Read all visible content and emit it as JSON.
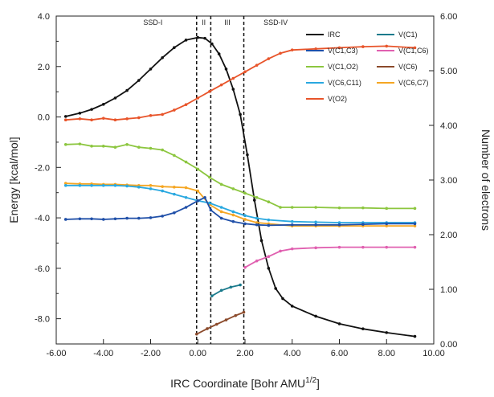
{
  "chart_data": {
    "type": "line",
    "xlabel": "IRC Coordinate [Bohr AMU",
    "xlabel_sup": "1/2",
    "xlabel_end": "]",
    "ylabel_left": "Energy [kcal/mol]",
    "ylabel_right": "Number of electrons",
    "xlim": [
      -6,
      10
    ],
    "ylim_left": [
      -9,
      4
    ],
    "ylim_right": [
      0,
      6
    ],
    "x_ticks": [
      "-6.00",
      "-4.00",
      "-2.00",
      "0.00",
      "2.00",
      "4.00",
      "6.00",
      "8.00",
      "10.00"
    ],
    "y_left_ticks": [
      "4.0",
      "2.0",
      "0.0",
      "-2.0",
      "-4.0",
      "-6.0",
      "-8.0"
    ],
    "y_right_ticks": [
      "6.00",
      "5.00",
      "4.00",
      "3.00",
      "2.00",
      "1.00",
      "0.00"
    ],
    "regions": [
      {
        "label": "SSD-I",
        "x": -1.9
      },
      {
        "label": "II",
        "x": 0.25
      },
      {
        "label": "III",
        "x": 1.25
      },
      {
        "label": "SSD-IV",
        "x": 3.3
      }
    ],
    "boundaries": [
      -0.05,
      0.55,
      1.95
    ],
    "legend": [
      {
        "label": "IRC",
        "color": "#111111"
      },
      {
        "label": "V(C1)",
        "color": "#1a7a8c"
      },
      {
        "label": "V(C1,C3)",
        "color": "#1f4fa8"
      },
      {
        "label": "V(C1,C6)",
        "color": "#e060b0"
      },
      {
        "label": "V(C1,O2)",
        "color": "#8cc63f"
      },
      {
        "label": "V(C6)",
        "color": "#8b4a2b"
      },
      {
        "label": "V(C6,C11)",
        "color": "#29a8e0"
      },
      {
        "label": "V(C6,C7)",
        "color": "#f5a623"
      },
      {
        "label": "V(O2)",
        "color": "#e8542a"
      }
    ],
    "series": [
      {
        "name": "IRC",
        "axis": "left",
        "color": "#111111",
        "points": [
          [
            -5.6,
            0.02
          ],
          [
            -5,
            0.15
          ],
          [
            -4.5,
            0.3
          ],
          [
            -4,
            0.5
          ],
          [
            -3.5,
            0.75
          ],
          [
            -3,
            1.05
          ],
          [
            -2.5,
            1.45
          ],
          [
            -2,
            1.9
          ],
          [
            -1.5,
            2.35
          ],
          [
            -1,
            2.75
          ],
          [
            -0.5,
            3.05
          ],
          [
            0,
            3.15
          ],
          [
            0.3,
            3.12
          ],
          [
            0.6,
            2.9
          ],
          [
            0.9,
            2.5
          ],
          [
            1.2,
            1.9
          ],
          [
            1.5,
            1.1
          ],
          [
            1.8,
            0.1
          ],
          [
            2.1,
            -1.5
          ],
          [
            2.4,
            -3.3
          ],
          [
            2.7,
            -4.9
          ],
          [
            3,
            -6.0
          ],
          [
            3.3,
            -6.8
          ],
          [
            3.6,
            -7.2
          ],
          [
            4,
            -7.5
          ],
          [
            5,
            -7.9
          ],
          [
            6,
            -8.2
          ],
          [
            7,
            -8.4
          ],
          [
            8,
            -8.55
          ],
          [
            9.2,
            -8.7
          ]
        ]
      },
      {
        "name": "V(O2)",
        "axis": "right",
        "color": "#e8542a",
        "points": [
          [
            -5.6,
            4.1
          ],
          [
            -5,
            4.12
          ],
          [
            -4.5,
            4.1
          ],
          [
            -4,
            4.13
          ],
          [
            -3.5,
            4.1
          ],
          [
            -3,
            4.12
          ],
          [
            -2.5,
            4.14
          ],
          [
            -2,
            4.18
          ],
          [
            -1.5,
            4.2
          ],
          [
            -1,
            4.28
          ],
          [
            -0.5,
            4.38
          ],
          [
            0,
            4.5
          ],
          [
            0.5,
            4.62
          ],
          [
            1,
            4.74
          ],
          [
            1.5,
            4.86
          ],
          [
            2,
            4.98
          ],
          [
            2.5,
            5.1
          ],
          [
            3,
            5.22
          ],
          [
            3.5,
            5.32
          ],
          [
            4,
            5.38
          ],
          [
            5,
            5.4
          ],
          [
            6,
            5.42
          ],
          [
            7,
            5.44
          ],
          [
            8,
            5.45
          ],
          [
            9.2,
            5.42
          ]
        ]
      },
      {
        "name": "V(C1,O2)",
        "axis": "right",
        "color": "#8cc63f",
        "points": [
          [
            -5.6,
            3.65
          ],
          [
            -5,
            3.66
          ],
          [
            -4.5,
            3.62
          ],
          [
            -4,
            3.62
          ],
          [
            -3.5,
            3.6
          ],
          [
            -3,
            3.65
          ],
          [
            -2.5,
            3.6
          ],
          [
            -2,
            3.58
          ],
          [
            -1.5,
            3.55
          ],
          [
            -1,
            3.45
          ],
          [
            -0.5,
            3.33
          ],
          [
            0,
            3.2
          ],
          [
            0.5,
            3.05
          ],
          [
            1,
            2.92
          ],
          [
            1.5,
            2.84
          ],
          [
            2,
            2.76
          ],
          [
            2.5,
            2.68
          ],
          [
            3,
            2.6
          ],
          [
            3.5,
            2.5
          ],
          [
            4,
            2.5
          ],
          [
            5,
            2.5
          ],
          [
            6,
            2.49
          ],
          [
            7,
            2.49
          ],
          [
            8,
            2.48
          ],
          [
            9.2,
            2.48
          ]
        ]
      },
      {
        "name": "V(C6,C7)",
        "axis": "right",
        "color": "#f5a623",
        "points": [
          [
            -5.6,
            2.94
          ],
          [
            -5,
            2.93
          ],
          [
            -4.5,
            2.93
          ],
          [
            -4,
            2.92
          ],
          [
            -3.5,
            2.92
          ],
          [
            -3,
            2.91
          ],
          [
            -2.5,
            2.9
          ],
          [
            -2,
            2.9
          ],
          [
            -1.5,
            2.88
          ],
          [
            -1,
            2.87
          ],
          [
            -0.5,
            2.86
          ],
          [
            0,
            2.8
          ],
          [
            0.5,
            2.55
          ],
          [
            1,
            2.42
          ],
          [
            1.5,
            2.36
          ],
          [
            2,
            2.28
          ],
          [
            2.5,
            2.22
          ],
          [
            3,
            2.2
          ],
          [
            4,
            2.16
          ],
          [
            5,
            2.16
          ],
          [
            6,
            2.16
          ],
          [
            7,
            2.16
          ],
          [
            8,
            2.16
          ],
          [
            9.2,
            2.16
          ]
        ]
      },
      {
        "name": "V(C6,C11)",
        "axis": "right",
        "color": "#29a8e0",
        "points": [
          [
            -5.6,
            2.9
          ],
          [
            -5,
            2.9
          ],
          [
            -4.5,
            2.9
          ],
          [
            -4,
            2.9
          ],
          [
            -3.5,
            2.9
          ],
          [
            -3,
            2.89
          ],
          [
            -2.5,
            2.87
          ],
          [
            -2,
            2.84
          ],
          [
            -1.5,
            2.8
          ],
          [
            -1,
            2.74
          ],
          [
            -0.5,
            2.68
          ],
          [
            0,
            2.62
          ],
          [
            0.5,
            2.58
          ],
          [
            1,
            2.5
          ],
          [
            1.5,
            2.42
          ],
          [
            2,
            2.35
          ],
          [
            2.5,
            2.3
          ],
          [
            3,
            2.27
          ],
          [
            4,
            2.24
          ],
          [
            5,
            2.23
          ],
          [
            6,
            2.22
          ],
          [
            7,
            2.22
          ],
          [
            8,
            2.22
          ],
          [
            9.2,
            2.22
          ]
        ]
      },
      {
        "name": "V(C1,C3)",
        "axis": "right",
        "color": "#1f4fa8",
        "points": [
          [
            -5.6,
            2.28
          ],
          [
            -5,
            2.29
          ],
          [
            -4.5,
            2.29
          ],
          [
            -4,
            2.28
          ],
          [
            -3.5,
            2.29
          ],
          [
            -3,
            2.3
          ],
          [
            -2.5,
            2.3
          ],
          [
            -2,
            2.31
          ],
          [
            -1.5,
            2.34
          ],
          [
            -1,
            2.4
          ],
          [
            -0.5,
            2.5
          ],
          [
            0,
            2.62
          ],
          [
            0.3,
            2.68
          ],
          [
            0.55,
            2.45
          ],
          [
            1,
            2.3
          ],
          [
            1.5,
            2.24
          ],
          [
            2,
            2.2
          ],
          [
            2.5,
            2.18
          ],
          [
            3,
            2.17
          ],
          [
            4,
            2.18
          ],
          [
            5,
            2.18
          ],
          [
            6,
            2.18
          ],
          [
            7,
            2.19
          ],
          [
            8,
            2.2
          ],
          [
            9.2,
            2.2
          ]
        ]
      },
      {
        "name": "V(C1,C6)",
        "axis": "right",
        "color": "#e060b0",
        "points": [
          [
            2,
            1.4
          ],
          [
            2.5,
            1.52
          ],
          [
            3,
            1.6
          ],
          [
            3.5,
            1.7
          ],
          [
            4,
            1.74
          ],
          [
            5,
            1.76
          ],
          [
            6,
            1.77
          ],
          [
            7,
            1.77
          ],
          [
            8,
            1.77
          ],
          [
            9.2,
            1.77
          ]
        ]
      },
      {
        "name": "V(C1)",
        "axis": "right",
        "color": "#1a7a8c",
        "points": [
          [
            0.6,
            0.88
          ],
          [
            1,
            0.98
          ],
          [
            1.4,
            1.04
          ],
          [
            1.8,
            1.08
          ]
        ]
      },
      {
        "name": "V(C6)",
        "axis": "right",
        "color": "#8b4a2b",
        "points": [
          [
            -0.05,
            0.18
          ],
          [
            0.4,
            0.28
          ],
          [
            0.8,
            0.36
          ],
          [
            1.2,
            0.44
          ],
          [
            1.6,
            0.52
          ],
          [
            1.95,
            0.58
          ]
        ]
      }
    ]
  }
}
